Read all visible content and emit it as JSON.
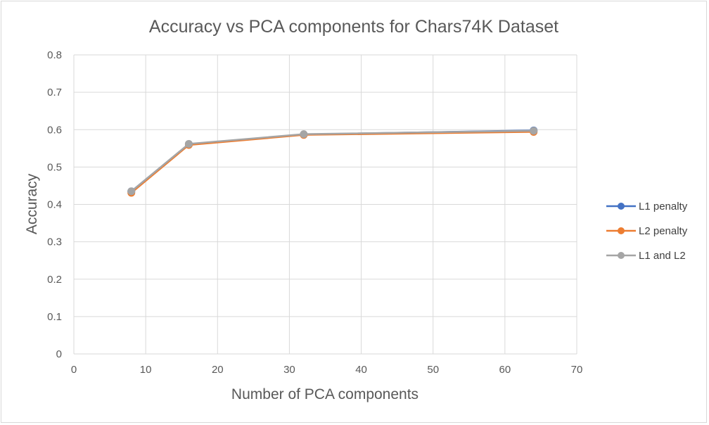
{
  "chart_data": {
    "type": "line",
    "title": "Accuracy vs PCA components for Chars74K Dataset",
    "xlabel": "Number of PCA components",
    "ylabel": "Accuracy",
    "xlim": [
      0,
      70
    ],
    "ylim": [
      0,
      0.8
    ],
    "xticks": [
      0,
      10,
      20,
      30,
      40,
      50,
      60,
      70
    ],
    "yticks": [
      0,
      0.1,
      0.2,
      0.3,
      0.4,
      0.5,
      0.6,
      0.7,
      0.8
    ],
    "xtick_labels": [
      "0",
      "10",
      "20",
      "30",
      "40",
      "50",
      "60",
      "70"
    ],
    "ytick_labels": [
      "0",
      "0.1",
      "0.2",
      "0.3",
      "0.4",
      "0.5",
      "0.6",
      "0.7",
      "0.8"
    ],
    "grid": true,
    "legend_position": "right",
    "series": [
      {
        "name": "L1 penalty",
        "color": "#4472C4",
        "x": [
          8,
          16,
          32,
          64
        ],
        "y": [
          0.435,
          0.561,
          0.587,
          0.598
        ]
      },
      {
        "name": "L2 penalty",
        "color": "#ED7D31",
        "x": [
          8,
          16,
          32,
          64
        ],
        "y": [
          0.431,
          0.559,
          0.586,
          0.594
        ]
      },
      {
        "name": "L1 and L2",
        "color": "#A5A5A5",
        "x": [
          8,
          16,
          32,
          64
        ],
        "y": [
          0.435,
          0.562,
          0.588,
          0.597
        ]
      }
    ]
  }
}
